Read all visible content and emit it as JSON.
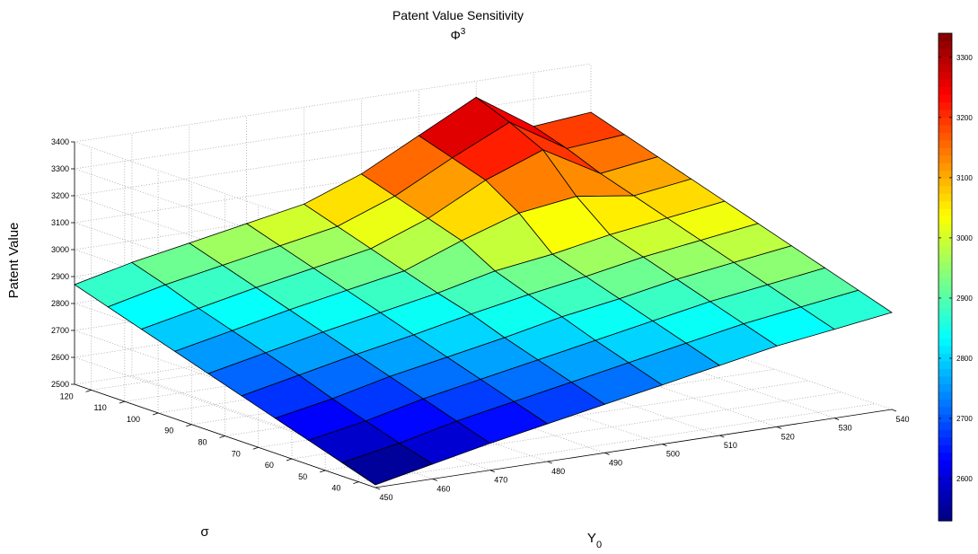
{
  "chart_data": {
    "type": "surface",
    "title": "Patent Value Sensitivity",
    "subtitle_base": "Φ",
    "subtitle_sup": "3",
    "xlabel_base": "Y",
    "xlabel_sub": "0",
    "ylabel": "σ",
    "zlabel": "Patent Value",
    "x": [
      450,
      460,
      470,
      480,
      490,
      500,
      510,
      520,
      530,
      540
    ],
    "y": [
      35,
      45,
      55,
      65,
      75,
      85,
      95,
      105,
      115,
      125
    ],
    "x_ticks": [
      "450",
      "460",
      "470",
      "480",
      "490",
      "500",
      "510",
      "520",
      "530",
      "540"
    ],
    "y_ticks": [
      "40",
      "50",
      "60",
      "70",
      "80",
      "90",
      "100",
      "110",
      "120"
    ],
    "z_ticks": [
      "2500",
      "2600",
      "2700",
      "2800",
      "2900",
      "3000",
      "3100",
      "3200",
      "3300",
      "3400"
    ],
    "xlim": [
      450,
      540
    ],
    "ylim": [
      35,
      125
    ],
    "zlim": [
      2500,
      3400
    ],
    "colormap": "jet",
    "colorbar": {
      "range": [
        2530,
        3340
      ],
      "ticks": [
        "2600",
        "2700",
        "2800",
        "2900",
        "3000",
        "3100",
        "3200",
        "3300"
      ]
    },
    "grid": true,
    "z": [
      [
        2510,
        2555,
        2600,
        2640,
        2680,
        2720,
        2760,
        2800,
        2830,
        2860
      ],
      [
        2550,
        2590,
        2640,
        2680,
        2720,
        2760,
        2800,
        2840,
        2870,
        2900
      ],
      [
        2590,
        2630,
        2680,
        2720,
        2760,
        2800,
        2840,
        2880,
        2910,
        2940
      ],
      [
        2630,
        2670,
        2720,
        2760,
        2800,
        2845,
        2880,
        2920,
        2950,
        2980
      ],
      [
        2670,
        2715,
        2760,
        2800,
        2845,
        2885,
        2920,
        2960,
        2990,
        3020
      ],
      [
        2710,
        2755,
        2800,
        2840,
        2880,
        2930,
        2960,
        3000,
        3030,
        3060
      ],
      [
        2750,
        2795,
        2840,
        2880,
        2920,
        3000,
        3070,
        3100,
        3070,
        3100
      ],
      [
        2790,
        2835,
        2880,
        2920,
        2960,
        3040,
        3150,
        3230,
        3110,
        3140
      ],
      [
        2830,
        2880,
        2920,
        2960,
        3000,
        3080,
        3190,
        3290,
        3160,
        3180
      ],
      [
        2870,
        2920,
        2960,
        3000,
        3040,
        3120,
        3230,
        3340,
        3200,
        3220
      ]
    ]
  }
}
